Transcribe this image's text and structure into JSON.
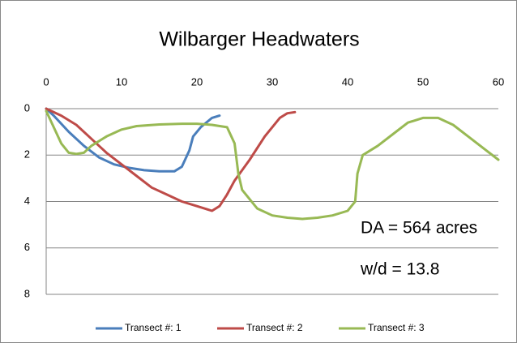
{
  "chart_data": {
    "type": "line",
    "title": "Wilbarger Headwaters",
    "annotations": [
      "DA = 564 acres",
      "w/d = 13.8"
    ],
    "xlim": [
      0,
      60
    ],
    "xticks": [
      0,
      10,
      20,
      30,
      40,
      50,
      60
    ],
    "ylim": [
      0,
      8
    ],
    "yticks": [
      0,
      2,
      4,
      6,
      8
    ],
    "y_inverted": true,
    "x_axis_top": true,
    "grid": true,
    "legend": "bottom",
    "series": [
      {
        "name": "Transect #: 1",
        "color": "#4a7ebb",
        "x": [
          0,
          1,
          3,
          5,
          7,
          9,
          11,
          13,
          15,
          17,
          18,
          19,
          19.5,
          20.5,
          22,
          23
        ],
        "values": [
          0,
          0.3,
          1,
          1.6,
          2.1,
          2.4,
          2.55,
          2.65,
          2.7,
          2.7,
          2.5,
          1.8,
          1.2,
          0.8,
          0.4,
          0.3
        ]
      },
      {
        "name": "Transect #: 2",
        "color": "#be4b48",
        "x": [
          0,
          2,
          4,
          6,
          8,
          10,
          12,
          14,
          16,
          18,
          20,
          22,
          23,
          24,
          25,
          27,
          29,
          31,
          32,
          33
        ],
        "values": [
          0,
          0.3,
          0.7,
          1.3,
          1.9,
          2.4,
          2.9,
          3.4,
          3.7,
          4.0,
          4.2,
          4.4,
          4.2,
          3.7,
          3.1,
          2.2,
          1.2,
          0.4,
          0.2,
          0.15
        ]
      },
      {
        "name": "Transect #: 3",
        "color": "#98b954",
        "x": [
          0,
          1,
          2,
          3,
          4,
          5,
          6,
          8,
          10,
          12,
          15,
          18,
          20,
          22,
          24,
          25,
          25.5,
          26,
          28,
          30,
          32,
          34,
          36,
          38,
          40,
          41,
          41.3,
          42,
          44,
          46,
          48,
          50,
          52,
          54,
          56,
          58,
          60
        ],
        "values": [
          0.1,
          0.8,
          1.5,
          1.9,
          1.95,
          1.9,
          1.6,
          1.2,
          0.9,
          0.75,
          0.68,
          0.65,
          0.65,
          0.7,
          0.8,
          1.5,
          2.8,
          3.5,
          4.3,
          4.6,
          4.7,
          4.75,
          4.7,
          4.6,
          4.4,
          4.0,
          2.8,
          2.0,
          1.6,
          1.1,
          0.6,
          0.4,
          0.4,
          0.7,
          1.2,
          1.7,
          2.2
        ]
      }
    ]
  }
}
